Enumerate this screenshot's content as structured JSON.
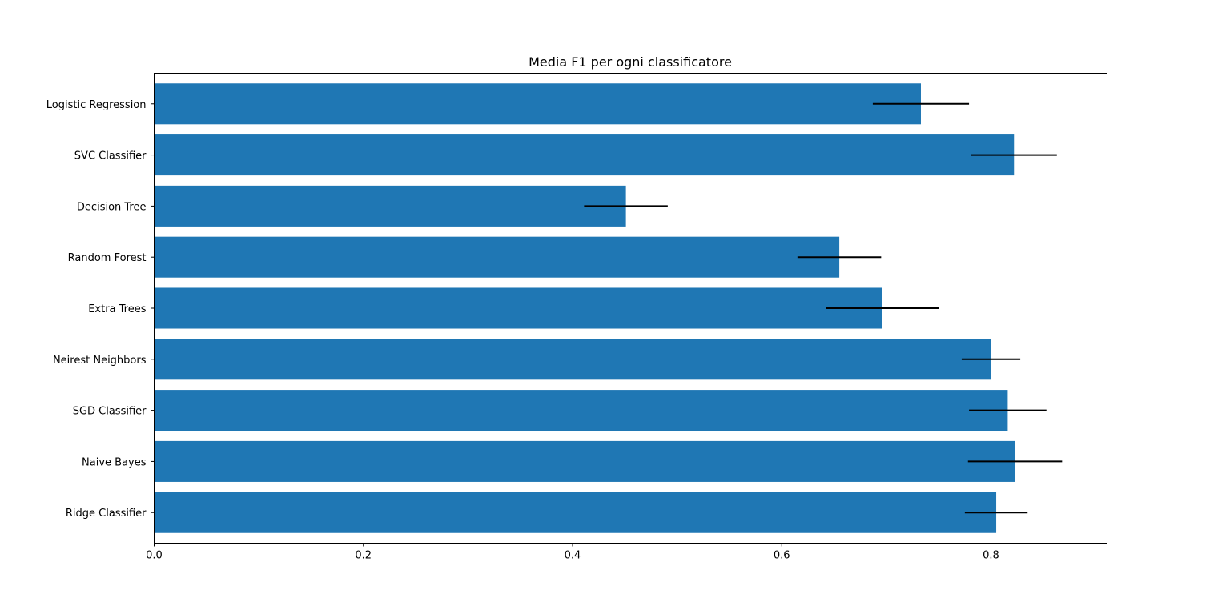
{
  "chart_data": {
    "type": "bar",
    "orientation": "horizontal",
    "title": "Media F1 per ogni classificatore",
    "xlabel": "",
    "ylabel": "",
    "categories": [
      "Logistic Regression",
      "SVC Classifier",
      "Decision Tree",
      "Random Forest",
      "Extra Trees",
      "Neirest Neighbors",
      "SGD Classifier",
      "Naive Bayes",
      "Ridge Classifier"
    ],
    "values": [
      0.733,
      0.822,
      0.451,
      0.655,
      0.696,
      0.8,
      0.816,
      0.823,
      0.805
    ],
    "errors": [
      0.046,
      0.041,
      0.04,
      0.04,
      0.054,
      0.028,
      0.037,
      0.045,
      0.03
    ],
    "xlim": [
      0,
      0.911
    ],
    "xticks": [
      0.0,
      0.2,
      0.4,
      0.6,
      0.8
    ],
    "xtick_labels": [
      "0.0",
      "0.2",
      "0.4",
      "0.6",
      "0.8"
    ],
    "bar_color": "#1f77b4",
    "error_color": "#000000",
    "grid": false,
    "legend": "none"
  }
}
